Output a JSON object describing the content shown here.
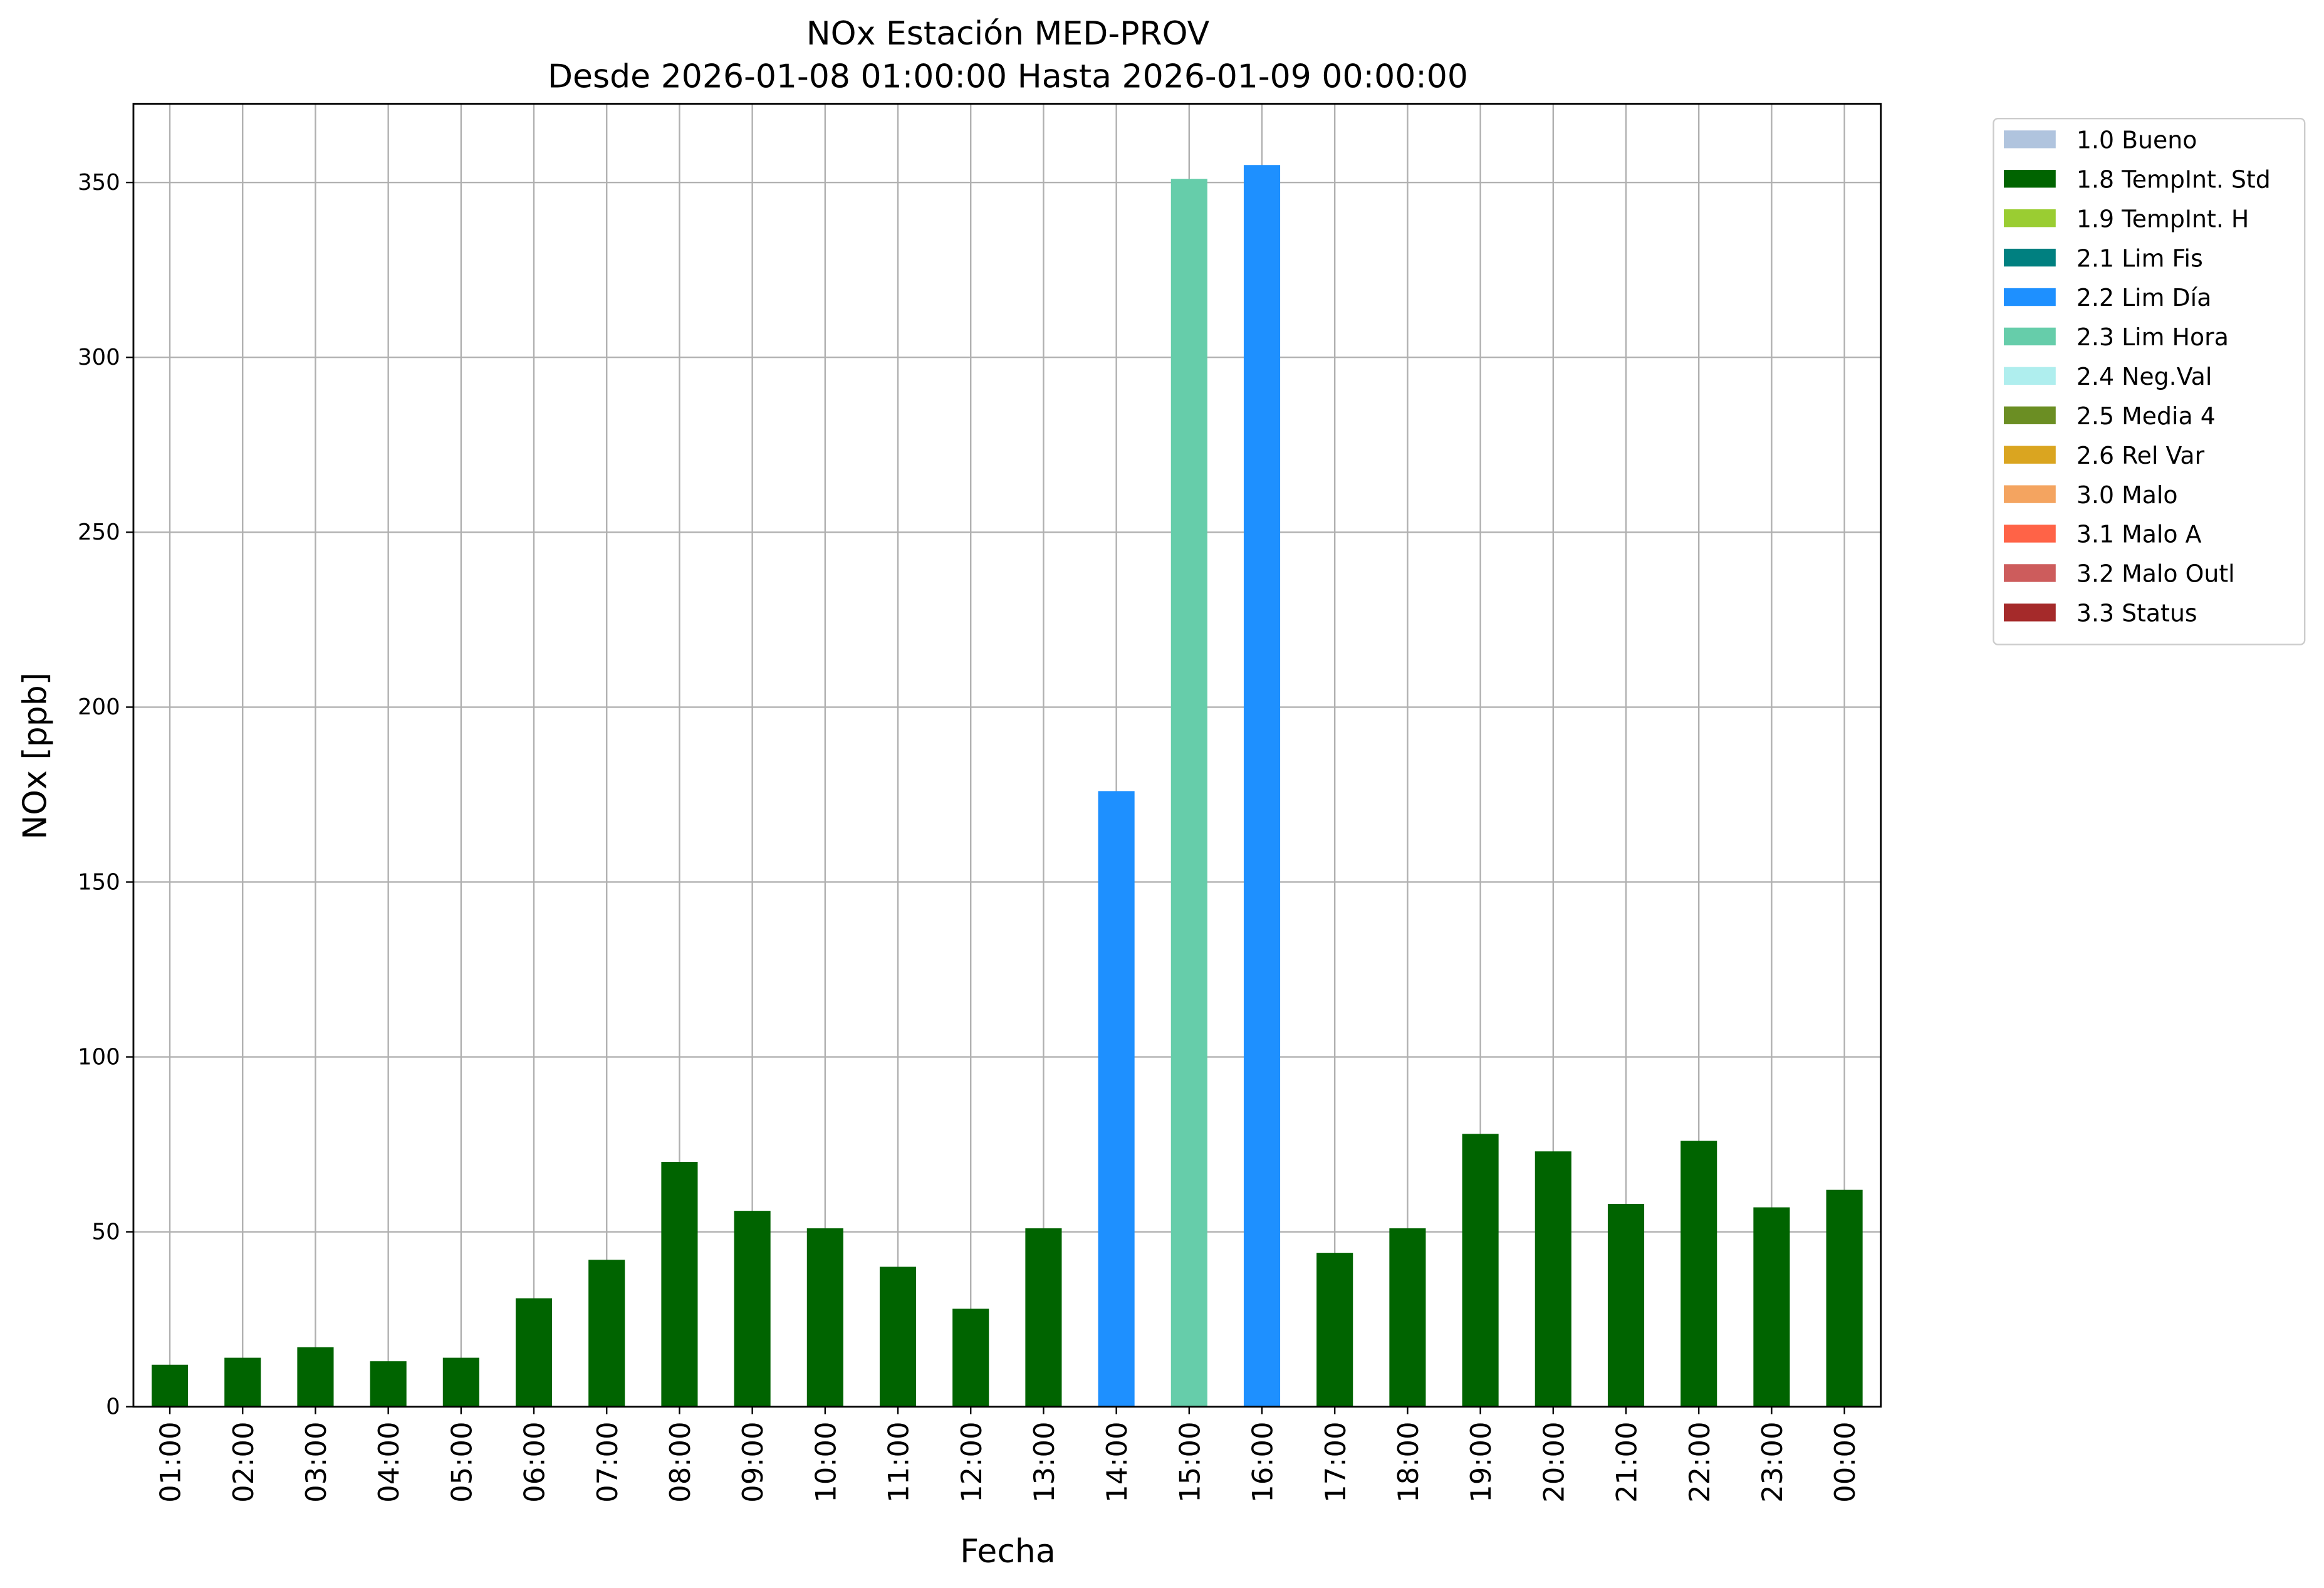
{
  "chart_data": {
    "type": "bar",
    "stacked": true,
    "title": "NOx Estación MED-PROV",
    "subtitle": "Desde 2026-01-08 01:00:00 Hasta 2026-01-09 00:00:00",
    "x_label": "Fecha",
    "y_label": "NOx [ppb]",
    "categories": [
      "01:00",
      "02:00",
      "03:00",
      "04:00",
      "05:00",
      "06:00",
      "07:00",
      "08:00",
      "09:00",
      "10:00",
      "11:00",
      "12:00",
      "13:00",
      "14:00",
      "15:00",
      "16:00",
      "17:00",
      "18:00",
      "19:00",
      "20:00",
      "21:00",
      "22:00",
      "23:00",
      "00:00"
    ],
    "series": [
      {
        "name": "1.0 Bueno",
        "color": "#b0c4de",
        "values": [
          null,
          null,
          null,
          null,
          null,
          null,
          null,
          null,
          null,
          null,
          null,
          null,
          null,
          null,
          null,
          null,
          null,
          null,
          null,
          null,
          null,
          null,
          null,
          null
        ]
      },
      {
        "name": "1.8 TempInt. Std",
        "color": "#006400",
        "values": [
          12,
          14,
          17,
          13,
          14,
          31,
          42,
          70,
          56,
          51,
          40,
          28,
          51,
          null,
          null,
          null,
          44,
          51,
          78,
          73,
          58,
          76,
          57,
          62
        ]
      },
      {
        "name": "1.9 TempInt. H",
        "color": "#9acd32",
        "values": [
          null,
          null,
          null,
          null,
          null,
          null,
          null,
          null,
          null,
          null,
          null,
          null,
          null,
          null,
          null,
          null,
          null,
          null,
          null,
          null,
          null,
          null,
          null,
          null
        ]
      },
      {
        "name": "2.1 Lim Fis",
        "color": "#008080",
        "values": [
          null,
          null,
          null,
          null,
          null,
          null,
          null,
          null,
          null,
          null,
          null,
          null,
          null,
          null,
          null,
          null,
          null,
          null,
          null,
          null,
          null,
          null,
          null,
          null
        ]
      },
      {
        "name": "2.2 Lim Día",
        "color": "#1e90ff",
        "values": [
          null,
          null,
          null,
          null,
          null,
          null,
          null,
          null,
          null,
          null,
          null,
          null,
          null,
          176,
          null,
          355,
          null,
          null,
          null,
          null,
          null,
          null,
          null,
          null
        ]
      },
      {
        "name": "2.3 Lim Hora",
        "color": "#66cdaa",
        "values": [
          null,
          null,
          null,
          null,
          null,
          null,
          null,
          null,
          null,
          null,
          null,
          null,
          null,
          null,
          351,
          null,
          null,
          null,
          null,
          null,
          null,
          null,
          null,
          null
        ]
      },
      {
        "name": "2.4 Neg.Val",
        "color": "#afeeee",
        "values": [
          null,
          null,
          null,
          null,
          null,
          null,
          null,
          null,
          null,
          null,
          null,
          null,
          null,
          null,
          null,
          null,
          null,
          null,
          null,
          null,
          null,
          null,
          null,
          null
        ]
      },
      {
        "name": "2.5 Media 4",
        "color": "#6b8e23",
        "values": [
          null,
          null,
          null,
          null,
          null,
          null,
          null,
          null,
          null,
          null,
          null,
          null,
          null,
          null,
          null,
          null,
          null,
          null,
          null,
          null,
          null,
          null,
          null,
          null
        ]
      },
      {
        "name": "2.6 Rel Var",
        "color": "#daa520",
        "values": [
          null,
          null,
          null,
          null,
          null,
          null,
          null,
          null,
          null,
          null,
          null,
          null,
          null,
          null,
          null,
          null,
          null,
          null,
          null,
          null,
          null,
          null,
          null,
          null
        ]
      },
      {
        "name": "3.0 Malo",
        "color": "#f4a460",
        "values": [
          null,
          null,
          null,
          null,
          null,
          null,
          null,
          null,
          null,
          null,
          null,
          null,
          null,
          null,
          null,
          null,
          null,
          null,
          null,
          null,
          null,
          null,
          null,
          null
        ]
      },
      {
        "name": "3.1 Malo A",
        "color": "#ff6347",
        "values": [
          null,
          null,
          null,
          null,
          null,
          null,
          null,
          null,
          null,
          null,
          null,
          null,
          null,
          null,
          null,
          null,
          null,
          null,
          null,
          null,
          null,
          null,
          null,
          null
        ]
      },
      {
        "name": "3.2 Malo Outl",
        "color": "#cd5c5c",
        "values": [
          null,
          null,
          null,
          null,
          null,
          null,
          null,
          null,
          null,
          null,
          null,
          null,
          null,
          null,
          null,
          null,
          null,
          null,
          null,
          null,
          null,
          null,
          null,
          null
        ]
      },
      {
        "name": "3.3 Status",
        "color": "#a52a2a",
        "values": [
          null,
          null,
          null,
          null,
          null,
          null,
          null,
          null,
          null,
          null,
          null,
          null,
          null,
          null,
          null,
          null,
          null,
          null,
          null,
          null,
          null,
          null,
          null,
          null
        ]
      }
    ],
    "ylim": [
      0,
      372.5
    ],
    "yticks": [
      0,
      50,
      100,
      150,
      200,
      250,
      300,
      350
    ],
    "grid": true,
    "legend": "outside-upper-right"
  }
}
